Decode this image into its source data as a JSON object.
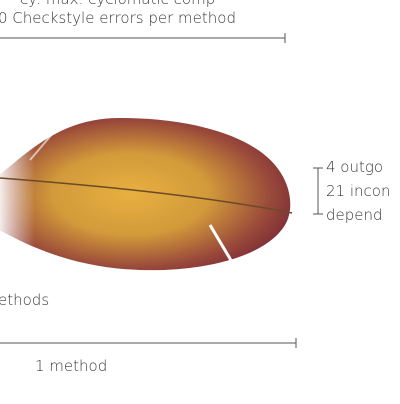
{
  "labels": {
    "top_cut": "cy: max. cyclomatic comp",
    "checkstyle": "0 Checkstyle errors per method",
    "outgoing": "4 outgo",
    "incoming": "21 incon",
    "depend": "depend",
    "methods": "ethods",
    "one_method": "1 method"
  }
}
